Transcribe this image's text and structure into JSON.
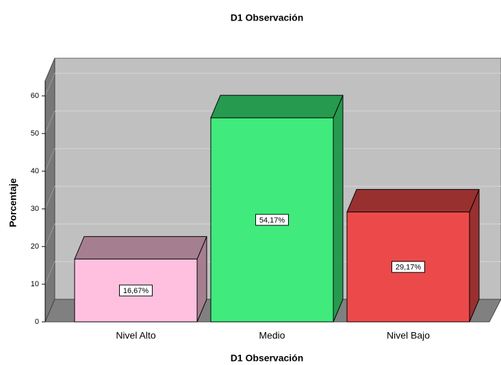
{
  "chart_data": {
    "type": "bar3d",
    "title": "D1 Observación",
    "xlabel": "D1 Observación",
    "ylabel": "Porcentaje",
    "categories": [
      "Nivel Alto",
      "Medio",
      "Nivel Bajo"
    ],
    "values": [
      16.67,
      54.17,
      29.17
    ],
    "value_labels": [
      "16,67%",
      "54,17%",
      "29,17%"
    ],
    "colors": [
      "#ffc0e0",
      "#40ea7c",
      "#ec4a4a"
    ],
    "top_colors": [
      "#a57f8f",
      "#269a4f",
      "#993030"
    ],
    "ylim": [
      0,
      64
    ],
    "yticks": [
      0,
      10,
      20,
      30,
      40,
      50,
      60
    ],
    "grid": true
  }
}
